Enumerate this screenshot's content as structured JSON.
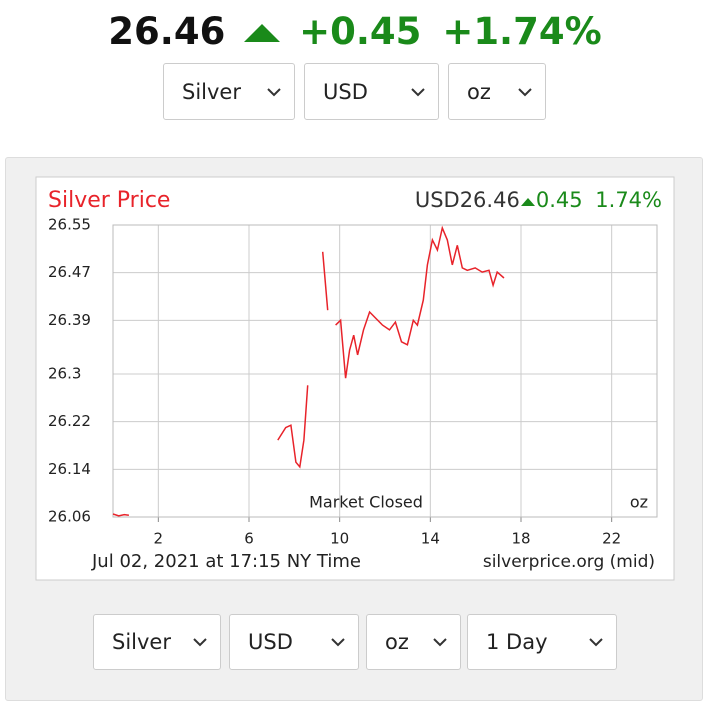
{
  "header": {
    "price": "26.46",
    "change": "+0.45",
    "change_percent": "+1.74%",
    "selects": [
      "Silver",
      "USD",
      "oz"
    ]
  },
  "chart_data": {
    "type": "line",
    "title": "Silver Price",
    "price_label": "USD26.46",
    "change_label": "0.45",
    "percent_label": "1.74%",
    "color": "#e8232a",
    "grid": true,
    "x": [
      0.0,
      0.25,
      0.5,
      0.7,
      null,
      7.27,
      7.62,
      7.85,
      8.07,
      8.24,
      8.42,
      8.59,
      null,
      9.25,
      9.47,
      null,
      9.82,
      10.04,
      10.26,
      10.44,
      10.62,
      10.79,
      11.05,
      11.32,
      11.58,
      11.89,
      12.2,
      12.46,
      12.73,
      12.99,
      13.25,
      13.43,
      13.69,
      13.87,
      14.09,
      14.31,
      14.53,
      14.75,
      14.97,
      15.19,
      15.41,
      15.63,
      15.98,
      16.29,
      16.59,
      16.77,
      16.95,
      17.25
    ],
    "values": [
      26.065,
      26.062,
      26.064,
      26.063,
      null,
      26.189,
      26.21,
      26.214,
      26.152,
      26.144,
      26.189,
      26.281,
      null,
      26.505,
      26.407,
      null,
      26.382,
      26.39,
      26.293,
      26.34,
      26.365,
      26.332,
      26.374,
      26.404,
      26.394,
      26.382,
      26.374,
      26.387,
      26.354,
      26.349,
      26.39,
      26.382,
      26.424,
      26.483,
      26.525,
      26.508,
      26.545,
      26.525,
      26.483,
      26.516,
      26.478,
      26.474,
      26.478,
      26.471,
      26.474,
      26.449,
      26.471,
      26.461
    ],
    "xlim": [
      0,
      24
    ],
    "xticks": [
      2,
      6,
      10,
      14,
      18,
      22
    ],
    "ylim": [
      26.06,
      26.55
    ],
    "yticks": [
      26.55,
      26.47,
      26.39,
      26.3,
      26.22,
      26.14,
      26.06
    ],
    "annotations": [
      "Market Closed",
      "oz"
    ],
    "footer_left": "Jul 02, 2021 at 17:15 NY Time",
    "footer_right": "silverprice.org (mid)"
  },
  "controls": {
    "selects": [
      "Silver",
      "USD",
      "oz",
      "1 Day"
    ]
  }
}
